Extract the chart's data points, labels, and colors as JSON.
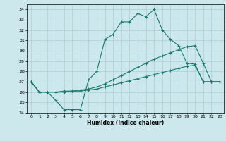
{
  "xlabel": "Humidex (Indice chaleur)",
  "ylabel": "",
  "xlim": [
    -0.5,
    23.5
  ],
  "ylim": [
    24,
    34.5
  ],
  "yticks": [
    24,
    25,
    26,
    27,
    28,
    29,
    30,
    31,
    32,
    33,
    34
  ],
  "xticks": [
    0,
    1,
    2,
    3,
    4,
    5,
    6,
    7,
    8,
    9,
    10,
    11,
    12,
    13,
    14,
    15,
    16,
    17,
    18,
    19,
    20,
    21,
    22,
    23
  ],
  "bg_color": "#cce8ec",
  "line_color": "#1a7a6e",
  "grid_color": "#aacdd4",
  "lines": [
    {
      "x": [
        0,
        1,
        2,
        3,
        4,
        5,
        6,
        7,
        8,
        9,
        10,
        11,
        12,
        13,
        14,
        15,
        16,
        17,
        18,
        19,
        20,
        21,
        22,
        23
      ],
      "y": [
        27.0,
        26.0,
        26.0,
        25.2,
        24.3,
        24.3,
        24.3,
        27.2,
        28.0,
        31.1,
        31.6,
        32.8,
        32.8,
        33.6,
        33.3,
        34.0,
        32.0,
        31.1,
        30.5,
        28.8,
        28.7,
        27.0,
        27.0,
        27.0
      ]
    },
    {
      "x": [
        0,
        1,
        2,
        3,
        4,
        5,
        6,
        7,
        8,
        9,
        10,
        11,
        12,
        13,
        14,
        15,
        16,
        17,
        18,
        19,
        20,
        21,
        22,
        23
      ],
      "y": [
        27.0,
        26.0,
        26.0,
        26.0,
        26.1,
        26.1,
        26.2,
        26.3,
        26.5,
        26.8,
        27.2,
        27.6,
        28.0,
        28.4,
        28.8,
        29.2,
        29.5,
        29.8,
        30.1,
        30.4,
        30.5,
        28.8,
        27.0,
        27.0
      ]
    },
    {
      "x": [
        0,
        1,
        2,
        3,
        4,
        5,
        6,
        7,
        8,
        9,
        10,
        11,
        12,
        13,
        14,
        15,
        16,
        17,
        18,
        19,
        20,
        21,
        22,
        23
      ],
      "y": [
        27.0,
        26.0,
        26.0,
        26.0,
        26.0,
        26.1,
        26.1,
        26.2,
        26.3,
        26.5,
        26.7,
        26.9,
        27.1,
        27.3,
        27.5,
        27.7,
        27.9,
        28.1,
        28.3,
        28.5,
        28.6,
        27.0,
        27.0,
        27.0
      ]
    }
  ]
}
